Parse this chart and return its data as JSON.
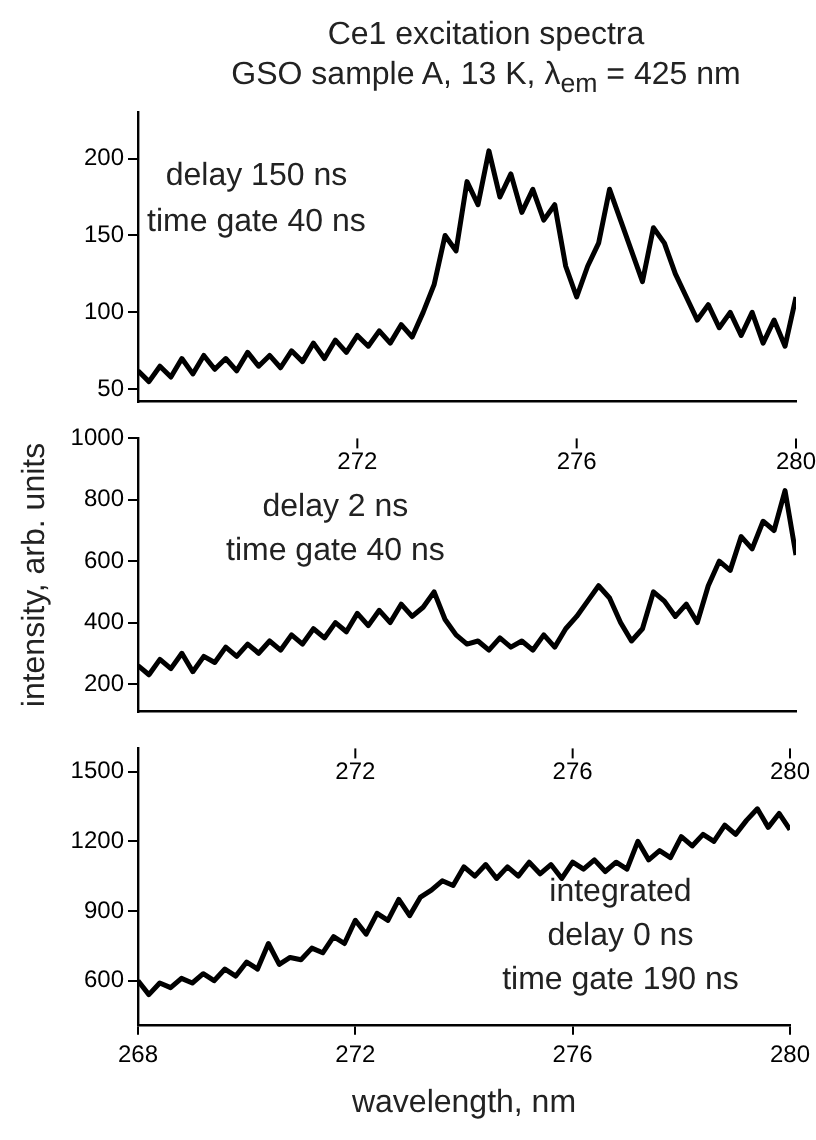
{
  "chart_data": [
    {
      "type": "line",
      "title": "Ce1 excitation spectra",
      "subtitle": "GSO sample A, 13 K, λ$_{em}$ = 425 nm",
      "annotations": [
        "delay 150 ns\ntime gate 40 ns"
      ],
      "xlim": [
        268,
        280
      ],
      "ylim": [
        42,
        230
      ],
      "yticks": [
        50,
        100,
        150,
        200
      ],
      "tick_labels": "y",
      "grid": false,
      "legend": false,
      "x": [
        268.0,
        268.2,
        268.4,
        268.6,
        268.8,
        269.0,
        269.2,
        269.4,
        269.6,
        269.8,
        270.0,
        270.2,
        270.4,
        270.6,
        270.8,
        271.0,
        271.2,
        271.4,
        271.6,
        271.8,
        272.0,
        272.2,
        272.4,
        272.6,
        272.8,
        273.0,
        273.2,
        273.4,
        273.6,
        273.8,
        274.0,
        274.2,
        274.4,
        274.6,
        274.8,
        275.0,
        275.2,
        275.4,
        275.6,
        275.8,
        276.0,
        276.2,
        276.4,
        276.6,
        276.8,
        277.0,
        277.2,
        277.4,
        277.6,
        277.8,
        278.0,
        278.2,
        278.4,
        278.6,
        278.8,
        279.0,
        279.2,
        279.4,
        279.6,
        279.8,
        280.0
      ],
      "series": [
        {
          "color": "#000000",
          "values": [
            62,
            55,
            65,
            58,
            70,
            60,
            72,
            63,
            70,
            62,
            74,
            65,
            72,
            64,
            75,
            68,
            80,
            70,
            82,
            74,
            85,
            78,
            88,
            80,
            92,
            84,
            100,
            118,
            150,
            140,
            185,
            170,
            205,
            175,
            190,
            165,
            180,
            160,
            170,
            130,
            110,
            130,
            145,
            180,
            160,
            140,
            120,
            155,
            145,
            125,
            110,
            95,
            105,
            90,
            100,
            85,
            100,
            80,
            95,
            78,
            110
          ]
        }
      ]
    },
    {
      "type": "line",
      "ylabel": "intensity, arb. units",
      "annotations": [
        "delay 2 ns\ntime gate 40 ns"
      ],
      "xlim": [
        268,
        280
      ],
      "x2lim": [
        268,
        280
      ],
      "x2ticks": [
        272,
        276,
        280
      ],
      "ylim": [
        110,
        1000
      ],
      "yticks": [
        200,
        400,
        600,
        800,
        1000
      ],
      "grid": false,
      "legend": false,
      "x": [
        268.0,
        268.2,
        268.4,
        268.6,
        268.8,
        269.0,
        269.2,
        269.4,
        269.6,
        269.8,
        270.0,
        270.2,
        270.4,
        270.6,
        270.8,
        271.0,
        271.2,
        271.4,
        271.6,
        271.8,
        272.0,
        272.2,
        272.4,
        272.6,
        272.8,
        273.0,
        273.2,
        273.4,
        273.6,
        273.8,
        274.0,
        274.2,
        274.4,
        274.6,
        274.8,
        275.0,
        275.2,
        275.4,
        275.6,
        275.8,
        276.0,
        276.2,
        276.4,
        276.6,
        276.8,
        277.0,
        277.2,
        277.4,
        277.6,
        277.8,
        278.0,
        278.2,
        278.4,
        278.6,
        278.8,
        279.0,
        279.2,
        279.4,
        279.6,
        279.8,
        280.0
      ],
      "series": [
        {
          "color": "#000000",
          "values": [
            260,
            230,
            280,
            250,
            300,
            240,
            290,
            270,
            320,
            290,
            330,
            300,
            340,
            310,
            360,
            330,
            380,
            350,
            400,
            370,
            430,
            390,
            440,
            400,
            460,
            420,
            450,
            500,
            410,
            360,
            330,
            340,
            310,
            350,
            320,
            340,
            310,
            360,
            320,
            380,
            420,
            470,
            520,
            480,
            400,
            340,
            380,
            500,
            470,
            420,
            460,
            400,
            520,
            600,
            570,
            680,
            640,
            730,
            700,
            830,
            620
          ]
        }
      ]
    },
    {
      "type": "line",
      "xlabel": "wavelength, nm",
      "annotations": [
        "integrated\ndelay 0 ns\ntime gate 190 ns"
      ],
      "xlim": [
        268,
        280
      ],
      "xticks": [
        268,
        272,
        276,
        280
      ],
      "x2lim": [
        268,
        280
      ],
      "x2ticks": [
        272,
        276,
        280
      ],
      "ylim": [
        410,
        1600
      ],
      "yticks": [
        600,
        900,
        1200,
        1500
      ],
      "grid": false,
      "legend": false,
      "x": [
        268.0,
        268.2,
        268.4,
        268.6,
        268.8,
        269.0,
        269.2,
        269.4,
        269.6,
        269.8,
        270.0,
        270.2,
        270.4,
        270.6,
        270.8,
        271.0,
        271.2,
        271.4,
        271.6,
        271.8,
        272.0,
        272.2,
        272.4,
        272.6,
        272.8,
        273.0,
        273.2,
        273.4,
        273.6,
        273.8,
        274.0,
        274.2,
        274.4,
        274.6,
        274.8,
        275.0,
        275.2,
        275.4,
        275.6,
        275.8,
        276.0,
        276.2,
        276.4,
        276.6,
        276.8,
        277.0,
        277.2,
        277.4,
        277.6,
        277.8,
        278.0,
        278.2,
        278.4,
        278.6,
        278.8,
        279.0,
        279.2,
        279.4,
        279.6,
        279.8,
        280.0
      ],
      "series": [
        {
          "color": "#000000",
          "values": [
            600,
            540,
            590,
            570,
            610,
            590,
            630,
            600,
            650,
            620,
            680,
            650,
            760,
            670,
            700,
            690,
            740,
            720,
            790,
            760,
            860,
            800,
            890,
            860,
            950,
            880,
            960,
            990,
            1030,
            1010,
            1090,
            1050,
            1100,
            1040,
            1090,
            1050,
            1110,
            1060,
            1100,
            1040,
            1110,
            1080,
            1120,
            1070,
            1110,
            1080,
            1200,
            1120,
            1160,
            1130,
            1220,
            1180,
            1230,
            1200,
            1270,
            1230,
            1290,
            1340,
            1260,
            1320,
            1250
          ]
        }
      ]
    }
  ]
}
